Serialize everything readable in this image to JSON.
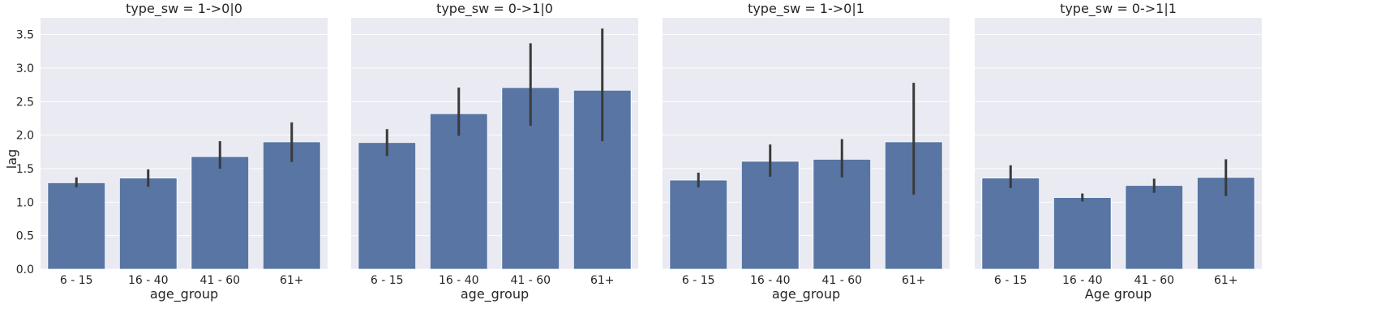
{
  "figure": {
    "ylabel": "lag",
    "colors": {
      "background": "#eaeaf2",
      "bar": "#5875a4",
      "error_bar": "#3a3a3a",
      "grid": "#ffffff",
      "text": "#262626"
    }
  },
  "chart_data": [
    {
      "type": "bar",
      "title": "type_sw = 1->0|0",
      "xlabel": "age_group",
      "ylabel": "lag",
      "categories": [
        "6 - 15",
        "16 - 40",
        "41 - 60",
        "61+"
      ],
      "values": [
        1.29,
        1.36,
        1.68,
        1.9
      ],
      "ci_low": [
        1.22,
        1.23,
        1.5,
        1.6
      ],
      "ci_high": [
        1.37,
        1.49,
        1.91,
        2.19
      ],
      "ylim": [
        0,
        3.75
      ],
      "yticks": [
        "0.0",
        "0.5",
        "1.0",
        "1.5",
        "2.0",
        "2.5",
        "3.0",
        "3.5"
      ],
      "grid": true
    },
    {
      "type": "bar",
      "title": "type_sw = 0->1|0",
      "xlabel": "age_group",
      "ylabel": "",
      "categories": [
        "6 - 15",
        "16 - 40",
        "41 - 60",
        "61+"
      ],
      "values": [
        1.89,
        2.32,
        2.71,
        2.67
      ],
      "ci_low": [
        1.69,
        1.99,
        2.14,
        1.91
      ],
      "ci_high": [
        2.09,
        2.71,
        3.37,
        3.59
      ],
      "ylim": [
        0,
        3.75
      ],
      "grid": true
    },
    {
      "type": "bar",
      "title": "type_sw = 1->0|1",
      "xlabel": "age_group",
      "ylabel": "",
      "categories": [
        "6 - 15",
        "16 - 40",
        "41 - 60",
        "61+"
      ],
      "values": [
        1.33,
        1.61,
        1.64,
        1.9
      ],
      "ci_low": [
        1.22,
        1.38,
        1.37,
        1.11
      ],
      "ci_high": [
        1.44,
        1.86,
        1.94,
        2.78
      ],
      "ylim": [
        0,
        3.75
      ],
      "grid": true
    },
    {
      "type": "bar",
      "title": "type_sw = 0->1|1",
      "xlabel": "Age group",
      "ylabel": "",
      "categories": [
        "6 - 15",
        "16 - 40",
        "41 - 60",
        "61+"
      ],
      "values": [
        1.36,
        1.07,
        1.25,
        1.37
      ],
      "ci_low": [
        1.21,
        1.01,
        1.14,
        1.09
      ],
      "ci_high": [
        1.55,
        1.13,
        1.35,
        1.64
      ],
      "ylim": [
        0,
        3.75
      ],
      "grid": true
    }
  ]
}
